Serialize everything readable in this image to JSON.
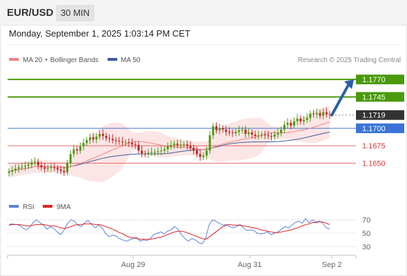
{
  "header": {
    "symbol": "EUR/USD",
    "timeframe": "30 MIN",
    "datetime": "Monday, September 1, 2025 1:03:14 PM CET"
  },
  "legend": {
    "ma20_label": "MA 20 + Bollinger Bands",
    "ma50_label": "MA 50",
    "credit": "Research © 2025 Trading Central"
  },
  "colors": {
    "resistance": "#4a9a0c",
    "support": "#dd3333",
    "pivot": "#3a74d8",
    "last": "#333333",
    "candle_up": "#4a9a0c",
    "candle_down": "#cc2222",
    "ma20": "#f08080",
    "ma50": "#3a5aa0",
    "bollinger": "#fbdada",
    "rsi": "#5b7fd8",
    "rsi_ma": "#dd2222",
    "arrow": "#2a5fa6"
  },
  "chart_data": [
    {
      "type": "candlestick",
      "title": "EUR/USD",
      "timeframe": "30 MIN",
      "ylim": [
        1.1605,
        1.1785
      ],
      "x_ticks": [
        "Aug 29",
        "Aug 31",
        "Sep 2"
      ],
      "levels": [
        {
          "label": "1.1770",
          "value": 1.177,
          "kind": "target"
        },
        {
          "label": "1.1745",
          "value": 1.1745,
          "kind": "resistance"
        },
        {
          "label": "1.1719",
          "value": 1.1719,
          "kind": "last"
        },
        {
          "label": "1.1700",
          "value": 1.17,
          "kind": "pivot"
        },
        {
          "label": "1.1675",
          "value": 1.1675,
          "kind": "support"
        },
        {
          "label": "1.1650",
          "value": 1.165,
          "kind": "support"
        }
      ],
      "forecast_arrow": {
        "from": 1.1719,
        "to": 1.177
      },
      "close": [
        1.1638,
        1.164,
        1.1642,
        1.1644,
        1.1645,
        1.1646,
        1.1648,
        1.1651,
        1.1652,
        1.1647,
        1.1644,
        1.1642,
        1.1643,
        1.1644,
        1.1643,
        1.1641,
        1.1639,
        1.1637,
        1.165,
        1.1663,
        1.167,
        1.1668,
        1.1674,
        1.1679,
        1.1683,
        1.1687,
        1.1684,
        1.1688,
        1.1692,
        1.1689,
        1.1686,
        1.1685,
        1.1683,
        1.1682,
        1.1681,
        1.168,
        1.168,
        1.1679,
        1.1677,
        1.1676,
        1.1668,
        1.1664,
        1.1663,
        1.1665,
        1.1666,
        1.1666,
        1.1667,
        1.1668,
        1.167,
        1.1674,
        1.1676,
        1.1678,
        1.1676,
        1.1677,
        1.1677,
        1.1675,
        1.1672,
        1.1668,
        1.1663,
        1.1659,
        1.1661,
        1.1668,
        1.169,
        1.1703,
        1.1697,
        1.17,
        1.1698,
        1.1695,
        1.1694,
        1.1693,
        1.1695,
        1.1697,
        1.1698,
        1.1692,
        1.1694,
        1.1691,
        1.1689,
        1.169,
        1.1691,
        1.169,
        1.1689,
        1.1688,
        1.1691,
        1.1693,
        1.1698,
        1.1705,
        1.1708,
        1.1704,
        1.171,
        1.1714,
        1.171,
        1.1712,
        1.1715,
        1.1721,
        1.172,
        1.1722,
        1.1718,
        1.1723,
        1.172,
        1.1719
      ]
    },
    {
      "type": "line",
      "title": "RSI",
      "ylim": [
        20,
        80
      ],
      "y_ticks": [
        70,
        50,
        30
      ],
      "series": [
        {
          "name": "RSI",
          "values": [
            63,
            64,
            63,
            62,
            58,
            55,
            59,
            66,
            70,
            66,
            62,
            56,
            60,
            57,
            52,
            48,
            55,
            65,
            70,
            68,
            62,
            60,
            66,
            69,
            63,
            58,
            62,
            58,
            50,
            45,
            47,
            46,
            42,
            40,
            38,
            40,
            42,
            44,
            38,
            40,
            39,
            42,
            48,
            50,
            52,
            49,
            53,
            55,
            60,
            56,
            48,
            42,
            38,
            42,
            40,
            36,
            34,
            42,
            62,
            70,
            68,
            65,
            62,
            63,
            60,
            58,
            60,
            63,
            58,
            54,
            55,
            54,
            50,
            49,
            50,
            52,
            48,
            50,
            52,
            56,
            60,
            58,
            62,
            66,
            68,
            65,
            72,
            66,
            70,
            67,
            68,
            65,
            58,
            56
          ]
        },
        {
          "name": "9MA",
          "values": [
            62,
            63,
            63,
            63,
            62,
            61,
            61,
            62,
            63,
            63,
            63,
            62,
            61,
            61,
            60,
            58,
            57,
            58,
            60,
            62,
            63,
            63,
            64,
            64,
            64,
            63,
            63,
            62,
            60,
            58,
            56,
            54,
            51,
            49,
            46,
            44,
            43,
            42,
            41,
            41,
            41,
            41,
            42,
            43,
            44,
            46,
            48,
            50,
            52,
            53,
            53,
            52,
            50,
            48,
            46,
            44,
            42,
            41,
            44,
            48,
            52,
            56,
            60,
            62,
            63,
            62,
            62,
            62,
            61,
            60,
            59,
            58,
            57,
            55,
            54,
            53,
            52,
            51,
            51,
            52,
            53,
            54,
            55,
            57,
            59,
            61,
            63,
            64,
            66,
            66,
            67,
            67,
            65,
            63
          ]
        }
      ]
    }
  ]
}
